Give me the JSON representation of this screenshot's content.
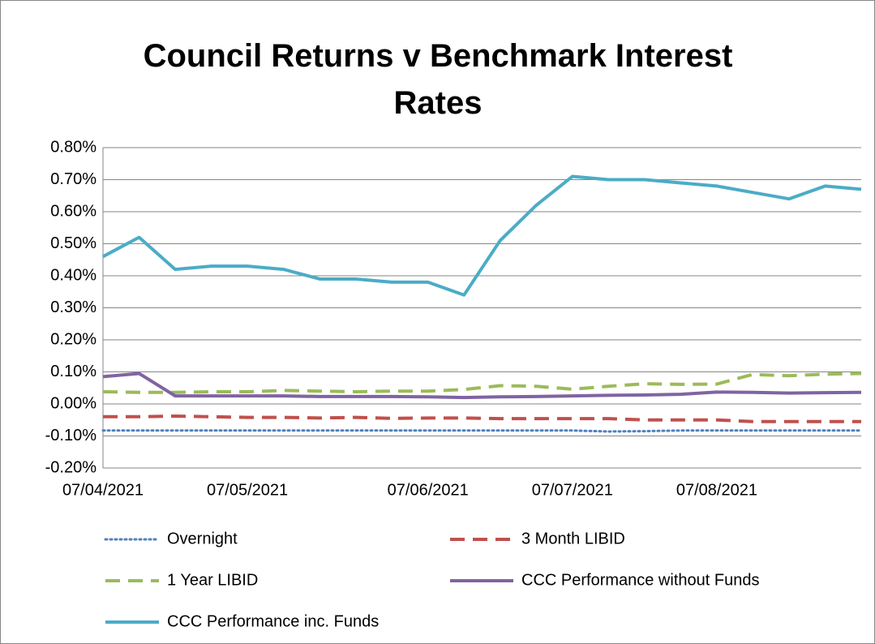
{
  "chart_data": {
    "type": "line",
    "title": "Council Returns v Benchmark Interest Rates",
    "categories": [
      "07/04/2021",
      null,
      null,
      null,
      "07/05/2021",
      null,
      null,
      null,
      null,
      "07/06/2021",
      null,
      null,
      null,
      "07/07/2021",
      null,
      null,
      null,
      "07/08/2021",
      null,
      null,
      null,
      null
    ],
    "ylim": [
      -0.2,
      0.8
    ],
    "yticks": [
      {
        "value": -0.2,
        "label": "-0.20%"
      },
      {
        "value": -0.1,
        "label": "-0.10%"
      },
      {
        "value": 0,
        "label": "0.00%"
      },
      {
        "value": 0.1,
        "label": "0.10%"
      },
      {
        "value": 0.2,
        "label": "0.20%"
      },
      {
        "value": 0.3,
        "label": "0.30%"
      },
      {
        "value": 0.4,
        "label": "0.40%"
      },
      {
        "value": 0.5,
        "label": "0.50%"
      },
      {
        "value": 0.6,
        "label": "0.60%"
      },
      {
        "value": 0.7,
        "label": "0.70%"
      },
      {
        "value": 0.8,
        "label": "0.80%"
      }
    ],
    "grid": true,
    "legend": "bottom",
    "series": [
      {
        "name": "Overnight",
        "color": "#4f81bd",
        "dash": "dotted",
        "values": [
          -0.083,
          -0.083,
          -0.083,
          -0.083,
          -0.083,
          -0.083,
          -0.083,
          -0.083,
          -0.083,
          -0.083,
          -0.083,
          -0.083,
          -0.083,
          -0.083,
          -0.086,
          -0.085,
          -0.083,
          -0.083,
          -0.083,
          -0.083,
          -0.083,
          -0.083
        ]
      },
      {
        "name": "3 Month LIBID",
        "color": "#c0504d",
        "dash": "dashed",
        "values": [
          -0.04,
          -0.04,
          -0.038,
          -0.04,
          -0.042,
          -0.042,
          -0.044,
          -0.042,
          -0.045,
          -0.044,
          -0.044,
          -0.046,
          -0.046,
          -0.046,
          -0.046,
          -0.05,
          -0.05,
          -0.05,
          -0.055,
          -0.055,
          -0.055,
          -0.055
        ]
      },
      {
        "name": "1 Year LIBID",
        "color": "#9bbb59",
        "dash": "dashed",
        "values": [
          0.038,
          0.036,
          0.036,
          0.038,
          0.038,
          0.042,
          0.04,
          0.038,
          0.04,
          0.04,
          0.045,
          0.057,
          0.055,
          0.046,
          0.055,
          0.063,
          0.061,
          0.062,
          0.092,
          0.088,
          0.093,
          0.095
        ]
      },
      {
        "name": "CCC Performance without Funds",
        "color": "#8064a2",
        "dash": "solid",
        "values": [
          0.085,
          0.095,
          0.025,
          0.025,
          0.025,
          0.025,
          0.023,
          0.023,
          0.023,
          0.022,
          0.02,
          0.022,
          0.023,
          0.025,
          0.027,
          0.028,
          0.03,
          0.037,
          0.036,
          0.034,
          0.035,
          0.036
        ]
      },
      {
        "name": "CCC Performance inc. Funds",
        "color": "#4bacc6",
        "dash": "solid",
        "values": [
          0.46,
          0.52,
          0.42,
          0.43,
          0.43,
          0.42,
          0.39,
          0.39,
          0.38,
          0.38,
          0.34,
          0.51,
          0.62,
          0.71,
          0.7,
          0.7,
          0.69,
          0.68,
          0.66,
          0.64,
          0.68,
          0.67
        ]
      }
    ]
  }
}
